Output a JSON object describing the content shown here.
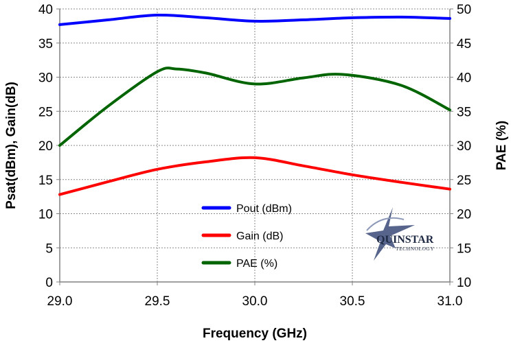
{
  "chart_data": {
    "type": "line",
    "xlabel": "Frequency (GHz)",
    "ylabel": "Psat(dBm), Gain(dB)",
    "y2label": "PAE (%)",
    "xlim": [
      29.0,
      31.0
    ],
    "ylim": [
      0,
      40
    ],
    "y2lim": [
      10,
      50
    ],
    "x_ticks": [
      "29.0",
      "29.5",
      "30.0",
      "30.5",
      "31.0"
    ],
    "y_ticks": [
      "0",
      "5",
      "10",
      "15",
      "20",
      "25",
      "30",
      "35",
      "40"
    ],
    "y2_ticks": [
      "10",
      "15",
      "20",
      "25",
      "30",
      "35",
      "40",
      "45",
      "50"
    ],
    "grid": true,
    "legend_position": "bottom-center",
    "series": [
      {
        "name": "Pout (dBm)",
        "axis": "left",
        "color": "#0000ff",
        "x": [
          29.0,
          29.25,
          29.5,
          29.75,
          30.0,
          30.25,
          30.5,
          30.75,
          31.0
        ],
        "y": [
          37.7,
          38.4,
          39.1,
          38.7,
          38.2,
          38.4,
          38.7,
          38.8,
          38.6
        ]
      },
      {
        "name": "Gain (dB)",
        "axis": "left",
        "color": "#ff0000",
        "x": [
          29.0,
          29.25,
          29.5,
          29.75,
          30.0,
          30.25,
          30.5,
          30.75,
          31.0
        ],
        "y": [
          12.8,
          14.7,
          16.5,
          17.6,
          18.2,
          17.0,
          15.7,
          14.6,
          13.6
        ]
      },
      {
        "name": "PAE (%)",
        "axis": "right",
        "color": "#006400",
        "x": [
          29.0,
          29.25,
          29.5,
          29.6,
          29.75,
          30.0,
          30.25,
          30.45,
          30.75,
          31.0
        ],
        "y": [
          30.0,
          35.8,
          40.8,
          41.2,
          40.6,
          39.0,
          39.9,
          40.4,
          38.8,
          35.2
        ]
      }
    ]
  },
  "logo": {
    "name": "QUINSTAR",
    "subtitle": "TECHNOLOGY"
  }
}
